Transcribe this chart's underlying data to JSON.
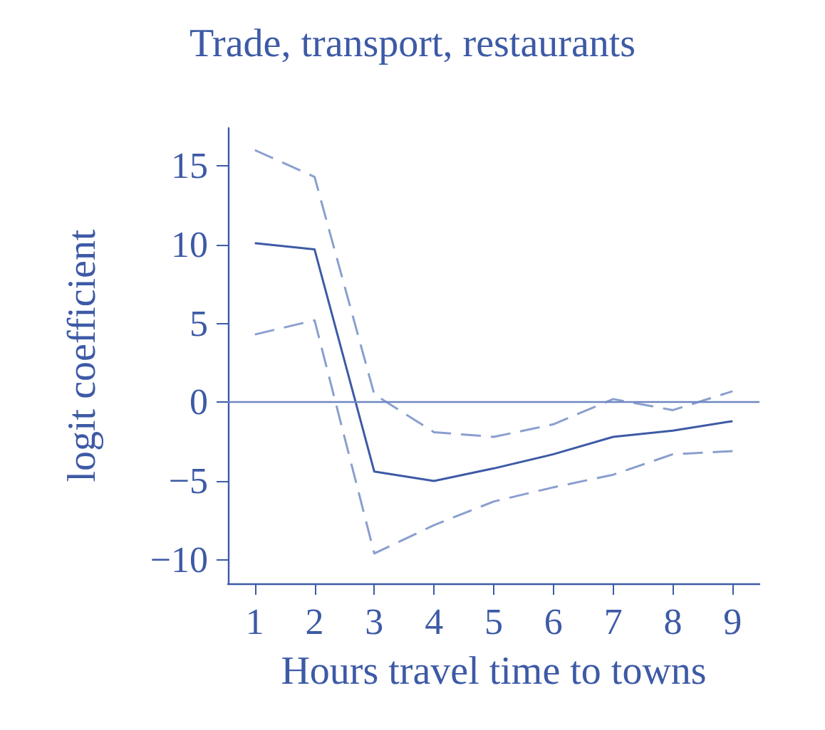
{
  "chart_data": {
    "type": "line",
    "title": "Trade, transport, restaurants",
    "xlabel": "Hours travel time to towns",
    "ylabel": "logit coefficient",
    "x": [
      1,
      2,
      3,
      4,
      5,
      6,
      7,
      8,
      9
    ],
    "series": [
      {
        "color": "#3d5aa6",
        "line_style": "solid",
        "values": [
          10.1,
          9.7,
          -4.4,
          -5.0,
          -4.2,
          -3.3,
          -2.2,
          -1.8,
          -1.2
        ]
      },
      {
        "color": "#8a9fcf",
        "line_style": "dashed",
        "values": [
          16,
          14.3,
          0.5,
          -1.9,
          -2.2,
          -1.4,
          0.2,
          -0.5,
          0.7
        ]
      },
      {
        "color": "#8a9fcf",
        "line_style": "dashed",
        "values": [
          4.3,
          5.2,
          -9.6,
          -7.8,
          -6.3,
          -5.4,
          -4.6,
          -3.3,
          -3.1
        ]
      }
    ],
    "xlim": [
      0.55,
      9.45
    ],
    "xticks": [
      1,
      2,
      3,
      4,
      5,
      6,
      7,
      8,
      9
    ],
    "ylim": [
      -11.5,
      17.4
    ],
    "yticks": [
      -10,
      -5,
      0,
      5,
      10,
      15
    ],
    "ref_lines": [
      {
        "axis": "y",
        "value": 0,
        "color": "#6f86c2",
        "line_style": "solid"
      }
    ],
    "marker": "none"
  }
}
